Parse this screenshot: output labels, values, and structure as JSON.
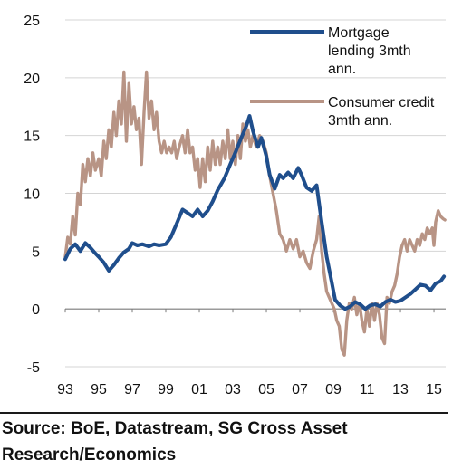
{
  "chart_data": {
    "type": "line",
    "title": "",
    "xlabel": "",
    "ylabel": "",
    "x_range": [
      1993.0,
      2015.7
    ],
    "ylim": [
      -5,
      25
    ],
    "y_ticks": [
      -5,
      0,
      5,
      10,
      15,
      20,
      25
    ],
    "x_ticks": [
      {
        "year": 1993,
        "label": "93"
      },
      {
        "year": 1995,
        "label": "95"
      },
      {
        "year": 1997,
        "label": "97"
      },
      {
        "year": 1999,
        "label": "99"
      },
      {
        "year": 2001,
        "label": "01"
      },
      {
        "year": 2003,
        "label": "03"
      },
      {
        "year": 2005,
        "label": "05"
      },
      {
        "year": 2007,
        "label": "07"
      },
      {
        "year": 2009,
        "label": "09"
      },
      {
        "year": 2011,
        "label": "11"
      },
      {
        "year": 2013,
        "label": "13"
      },
      {
        "year": 2015,
        "label": "15"
      }
    ],
    "grid": "horizontal",
    "legend_position": "top-right",
    "series": [
      {
        "name": "Mortgage lending 3mth ann.",
        "name_lines": [
          "Mortgage",
          "lending 3mth",
          "ann."
        ],
        "color": "#1f4e8c",
        "points": [
          [
            1993.0,
            4.3
          ],
          [
            1993.3,
            5.2
          ],
          [
            1993.6,
            5.6
          ],
          [
            1993.9,
            5.0
          ],
          [
            1994.2,
            5.7
          ],
          [
            1994.5,
            5.3
          ],
          [
            1994.8,
            4.8
          ],
          [
            1995.0,
            4.5
          ],
          [
            1995.3,
            4.0
          ],
          [
            1995.6,
            3.3
          ],
          [
            1995.9,
            3.8
          ],
          [
            1996.2,
            4.4
          ],
          [
            1996.5,
            4.9
          ],
          [
            1996.8,
            5.2
          ],
          [
            1997.0,
            5.7
          ],
          [
            1997.3,
            5.5
          ],
          [
            1997.6,
            5.6
          ],
          [
            1998.0,
            5.4
          ],
          [
            1998.3,
            5.6
          ],
          [
            1998.6,
            5.5
          ],
          [
            1999.0,
            5.6
          ],
          [
            1999.3,
            6.2
          ],
          [
            1999.6,
            7.2
          ],
          [
            2000.0,
            8.6
          ],
          [
            2000.3,
            8.3
          ],
          [
            2000.6,
            8.0
          ],
          [
            2000.9,
            8.6
          ],
          [
            2001.2,
            8.0
          ],
          [
            2001.5,
            8.5
          ],
          [
            2001.8,
            9.3
          ],
          [
            2002.1,
            10.3
          ],
          [
            2002.5,
            11.3
          ],
          [
            2002.9,
            12.7
          ],
          [
            2003.2,
            13.7
          ],
          [
            2003.5,
            14.8
          ],
          [
            2003.8,
            15.8
          ],
          [
            2004.0,
            16.7
          ],
          [
            2004.2,
            15.4
          ],
          [
            2004.5,
            14.0
          ],
          [
            2004.7,
            14.8
          ],
          [
            2005.0,
            13.2
          ],
          [
            2005.2,
            11.6
          ],
          [
            2005.5,
            10.4
          ],
          [
            2005.8,
            11.6
          ],
          [
            2006.0,
            11.3
          ],
          [
            2006.3,
            11.8
          ],
          [
            2006.6,
            11.3
          ],
          [
            2006.9,
            12.2
          ],
          [
            2007.1,
            11.6
          ],
          [
            2007.4,
            10.5
          ],
          [
            2007.7,
            10.2
          ],
          [
            2008.0,
            10.7
          ],
          [
            2008.3,
            7.5
          ],
          [
            2008.6,
            4.5
          ],
          [
            2008.9,
            2.3
          ],
          [
            2009.1,
            0.8
          ],
          [
            2009.4,
            0.3
          ],
          [
            2009.7,
            0.0
          ],
          [
            2010.0,
            0.2
          ],
          [
            2010.3,
            0.6
          ],
          [
            2010.6,
            0.4
          ],
          [
            2010.9,
            0.0
          ],
          [
            2011.2,
            0.3
          ],
          [
            2011.5,
            0.4
          ],
          [
            2011.8,
            0.2
          ],
          [
            2012.1,
            0.6
          ],
          [
            2012.4,
            0.8
          ],
          [
            2012.7,
            0.6
          ],
          [
            2013.0,
            0.7
          ],
          [
            2013.3,
            1.0
          ],
          [
            2013.6,
            1.3
          ],
          [
            2013.9,
            1.7
          ],
          [
            2014.2,
            2.1
          ],
          [
            2014.5,
            2.0
          ],
          [
            2014.8,
            1.6
          ],
          [
            2015.1,
            2.2
          ],
          [
            2015.4,
            2.4
          ],
          [
            2015.6,
            2.8
          ]
        ]
      },
      {
        "name": "Consumer credit 3mth ann.",
        "name_lines": [
          "Consumer credit",
          "3mth ann."
        ],
        "color": "#b89485",
        "points": [
          [
            1993.0,
            4.5
          ],
          [
            1993.15,
            6.2
          ],
          [
            1993.3,
            5.6
          ],
          [
            1993.45,
            8.0
          ],
          [
            1993.6,
            6.4
          ],
          [
            1993.75,
            10.0
          ],
          [
            1993.9,
            9.0
          ],
          [
            1994.05,
            12.5
          ],
          [
            1994.2,
            11.0
          ],
          [
            1994.35,
            13.0
          ],
          [
            1994.5,
            11.5
          ],
          [
            1994.65,
            13.5
          ],
          [
            1994.8,
            12.0
          ],
          [
            1995.0,
            13.0
          ],
          [
            1995.15,
            11.5
          ],
          [
            1995.3,
            14.5
          ],
          [
            1995.45,
            13.0
          ],
          [
            1995.6,
            15.5
          ],
          [
            1995.75,
            14.0
          ],
          [
            1995.9,
            17.0
          ],
          [
            1996.05,
            15.0
          ],
          [
            1996.2,
            18.0
          ],
          [
            1996.35,
            16.0
          ],
          [
            1996.5,
            20.5
          ],
          [
            1996.65,
            14.5
          ],
          [
            1996.8,
            19.5
          ],
          [
            1996.95,
            16.0
          ],
          [
            1997.1,
            17.5
          ],
          [
            1997.25,
            15.5
          ],
          [
            1997.4,
            16.5
          ],
          [
            1997.55,
            12.5
          ],
          [
            1997.7,
            17.0
          ],
          [
            1997.85,
            20.5
          ],
          [
            1998.0,
            16.5
          ],
          [
            1998.15,
            18.0
          ],
          [
            1998.3,
            15.5
          ],
          [
            1998.45,
            17.0
          ],
          [
            1998.6,
            14.5
          ],
          [
            1998.75,
            13.5
          ],
          [
            1998.9,
            14.5
          ],
          [
            1999.05,
            13.5
          ],
          [
            1999.2,
            14.0
          ],
          [
            1999.35,
            13.5
          ],
          [
            1999.5,
            14.5
          ],
          [
            1999.65,
            13.0
          ],
          [
            1999.8,
            14.0
          ],
          [
            2000.0,
            15.0
          ],
          [
            2000.15,
            13.5
          ],
          [
            2000.3,
            15.5
          ],
          [
            2000.45,
            13.5
          ],
          [
            2000.6,
            14.0
          ],
          [
            2000.75,
            12.0
          ],
          [
            2000.9,
            13.0
          ],
          [
            2001.05,
            10.5
          ],
          [
            2001.2,
            13.0
          ],
          [
            2001.35,
            11.0
          ],
          [
            2001.5,
            14.0
          ],
          [
            2001.65,
            12.0
          ],
          [
            2001.8,
            14.5
          ],
          [
            2001.95,
            12.5
          ],
          [
            2002.1,
            14.0
          ],
          [
            2002.25,
            12.5
          ],
          [
            2002.4,
            14.5
          ],
          [
            2002.55,
            13.0
          ],
          [
            2002.7,
            15.5
          ],
          [
            2002.85,
            13.0
          ],
          [
            2003.0,
            14.5
          ],
          [
            2003.15,
            12.5
          ],
          [
            2003.3,
            15.0
          ],
          [
            2003.45,
            13.0
          ],
          [
            2003.6,
            16.0
          ],
          [
            2003.75,
            14.5
          ],
          [
            2003.9,
            15.5
          ],
          [
            2004.05,
            14.0
          ],
          [
            2004.2,
            15.0
          ],
          [
            2004.4,
            14.0
          ],
          [
            2004.6,
            15.0
          ],
          [
            2004.8,
            14.5
          ],
          [
            2005.0,
            13.5
          ],
          [
            2005.2,
            11.5
          ],
          [
            2005.4,
            10.0
          ],
          [
            2005.6,
            8.5
          ],
          [
            2005.8,
            6.5
          ],
          [
            2006.0,
            6.0
          ],
          [
            2006.2,
            5.0
          ],
          [
            2006.4,
            6.0
          ],
          [
            2006.6,
            5.2
          ],
          [
            2006.8,
            6.0
          ],
          [
            2007.0,
            4.5
          ],
          [
            2007.2,
            5.0
          ],
          [
            2007.4,
            4.0
          ],
          [
            2007.6,
            3.5
          ],
          [
            2007.8,
            5.0
          ],
          [
            2008.0,
            6.0
          ],
          [
            2008.15,
            8.0
          ],
          [
            2008.3,
            5.0
          ],
          [
            2008.45,
            3.0
          ],
          [
            2008.6,
            1.5
          ],
          [
            2008.75,
            1.0
          ],
          [
            2008.9,
            0.5
          ],
          [
            2009.05,
            0.0
          ],
          [
            2009.2,
            -1.0
          ],
          [
            2009.35,
            -1.5
          ],
          [
            2009.5,
            -3.5
          ],
          [
            2009.65,
            -4.0
          ],
          [
            2009.8,
            -1.0
          ],
          [
            2009.95,
            0.5
          ],
          [
            2010.1,
            0.0
          ],
          [
            2010.25,
            1.0
          ],
          [
            2010.4,
            -0.5
          ],
          [
            2010.55,
            0.5
          ],
          [
            2010.7,
            -1.0
          ],
          [
            2010.85,
            -2.0
          ],
          [
            2011.0,
            0.0
          ],
          [
            2011.15,
            -1.5
          ],
          [
            2011.3,
            0.5
          ],
          [
            2011.45,
            -1.0
          ],
          [
            2011.6,
            0.5
          ],
          [
            2011.75,
            -0.5
          ],
          [
            2011.9,
            -2.5
          ],
          [
            2012.05,
            -3.0
          ],
          [
            2012.2,
            1.0
          ],
          [
            2012.35,
            0.5
          ],
          [
            2012.5,
            1.5
          ],
          [
            2012.65,
            2.0
          ],
          [
            2012.8,
            3.0
          ],
          [
            2012.95,
            4.5
          ],
          [
            2013.1,
            5.5
          ],
          [
            2013.25,
            6.0
          ],
          [
            2013.4,
            5.0
          ],
          [
            2013.55,
            6.0
          ],
          [
            2013.7,
            5.5
          ],
          [
            2013.85,
            5.0
          ],
          [
            2014.0,
            6.0
          ],
          [
            2014.15,
            5.5
          ],
          [
            2014.3,
            6.5
          ],
          [
            2014.45,
            6.0
          ],
          [
            2014.6,
            7.0
          ],
          [
            2014.75,
            6.5
          ],
          [
            2014.9,
            7.0
          ],
          [
            2015.0,
            5.5
          ],
          [
            2015.1,
            7.5
          ],
          [
            2015.25,
            8.5
          ],
          [
            2015.4,
            8.0
          ],
          [
            2015.55,
            7.8
          ],
          [
            2015.65,
            7.7
          ]
        ]
      }
    ]
  },
  "source_text": "Source: BoE, Datastream, SG Cross Asset Research/Economics"
}
